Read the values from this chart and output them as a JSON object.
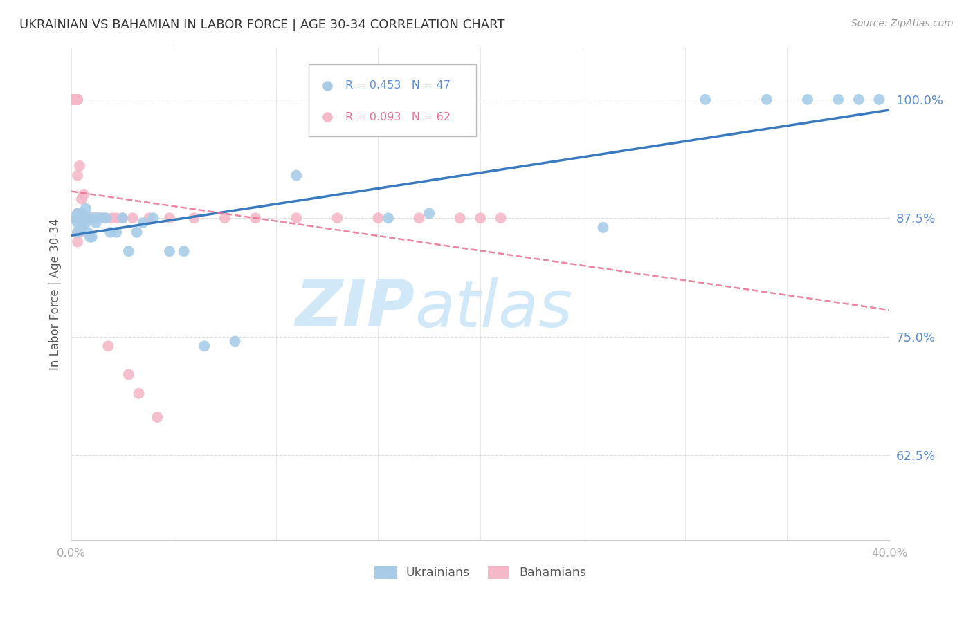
{
  "title": "UKRAINIAN VS BAHAMIAN IN LABOR FORCE | AGE 30-34 CORRELATION CHART",
  "source": "Source: ZipAtlas.com",
  "ylabel": "In Labor Force | Age 30-34",
  "xlim": [
    0.0,
    0.4
  ],
  "ylim": [
    0.535,
    1.055
  ],
  "yticks": [
    0.625,
    0.75,
    0.875,
    1.0
  ],
  "ytick_labels": [
    "62.5%",
    "75.0%",
    "87.5%",
    "100.0%"
  ],
  "xticks": [
    0.0,
    0.05,
    0.1,
    0.15,
    0.2,
    0.25,
    0.3,
    0.35,
    0.4
  ],
  "xtick_labels": [
    "0.0%",
    "",
    "",
    "",
    "",
    "",
    "",
    "",
    "40.0%"
  ],
  "ukrainian_color": "#a8cce8",
  "bahamian_color": "#f5b8c8",
  "ukrainian_R": 0.453,
  "ukrainian_N": 47,
  "bahamian_R": 0.093,
  "bahamian_N": 62,
  "trend_color_ukrainian": "#3a7abf",
  "trend_color_bahamian": "#e87090",
  "watermark_zip": "ZIP",
  "watermark_atlas": "atlas",
  "watermark_color": "#d0e8f8",
  "background_color": "#ffffff",
  "title_color": "#333333",
  "axis_label_color": "#555555",
  "tick_color_y": "#5b8ed6",
  "grid_color": "#dddddd",
  "ukrainian_x": [
    0.001,
    0.002,
    0.002,
    0.003,
    0.003,
    0.003,
    0.003,
    0.004,
    0.004,
    0.005,
    0.005,
    0.006,
    0.006,
    0.007,
    0.007,
    0.007,
    0.008,
    0.008,
    0.009,
    0.009,
    0.01,
    0.011,
    0.012,
    0.013,
    0.015,
    0.017,
    0.019,
    0.022,
    0.025,
    0.028,
    0.032,
    0.035,
    0.04,
    0.048,
    0.055,
    0.065,
    0.08,
    0.11,
    0.155,
    0.175,
    0.26,
    0.31,
    0.34,
    0.36,
    0.375,
    0.385,
    0.395
  ],
  "ukrainian_y": [
    0.875,
    0.875,
    0.875,
    0.88,
    0.875,
    0.87,
    0.86,
    0.875,
    0.875,
    0.88,
    0.865,
    0.875,
    0.875,
    0.885,
    0.875,
    0.87,
    0.875,
    0.86,
    0.875,
    0.855,
    0.855,
    0.875,
    0.87,
    0.875,
    0.875,
    0.875,
    0.86,
    0.86,
    0.875,
    0.84,
    0.86,
    0.87,
    0.875,
    0.84,
    0.84,
    0.74,
    0.745,
    0.92,
    0.875,
    0.88,
    0.865,
    1.0,
    1.0,
    1.0,
    1.0,
    1.0,
    1.0
  ],
  "bahamian_x": [
    0.001,
    0.001,
    0.001,
    0.001,
    0.001,
    0.002,
    0.002,
    0.002,
    0.002,
    0.002,
    0.003,
    0.003,
    0.003,
    0.003,
    0.003,
    0.003,
    0.003,
    0.003,
    0.003,
    0.004,
    0.004,
    0.004,
    0.004,
    0.005,
    0.005,
    0.005,
    0.005,
    0.006,
    0.006,
    0.006,
    0.007,
    0.007,
    0.007,
    0.008,
    0.008,
    0.009,
    0.01,
    0.011,
    0.012,
    0.013,
    0.014,
    0.016,
    0.018,
    0.02,
    0.022,
    0.025,
    0.028,
    0.03,
    0.033,
    0.038,
    0.042,
    0.048,
    0.06,
    0.075,
    0.09,
    0.11,
    0.13,
    0.15,
    0.17,
    0.19,
    0.2,
    0.21
  ],
  "bahamian_y": [
    1.0,
    1.0,
    1.0,
    1.0,
    1.0,
    1.0,
    1.0,
    1.0,
    1.0,
    1.0,
    1.0,
    1.0,
    1.0,
    1.0,
    0.92,
    0.88,
    0.875,
    0.86,
    0.85,
    0.93,
    0.875,
    0.875,
    0.86,
    0.895,
    0.875,
    0.875,
    0.875,
    0.9,
    0.875,
    0.875,
    0.875,
    0.875,
    0.875,
    0.875,
    0.875,
    0.875,
    0.875,
    0.875,
    0.875,
    0.875,
    0.875,
    0.875,
    0.74,
    0.875,
    0.875,
    0.875,
    0.71,
    0.875,
    0.69,
    0.875,
    0.665,
    0.875,
    0.875,
    0.875,
    0.875,
    0.875,
    0.875,
    0.875,
    0.875,
    0.875,
    0.875,
    0.875
  ]
}
